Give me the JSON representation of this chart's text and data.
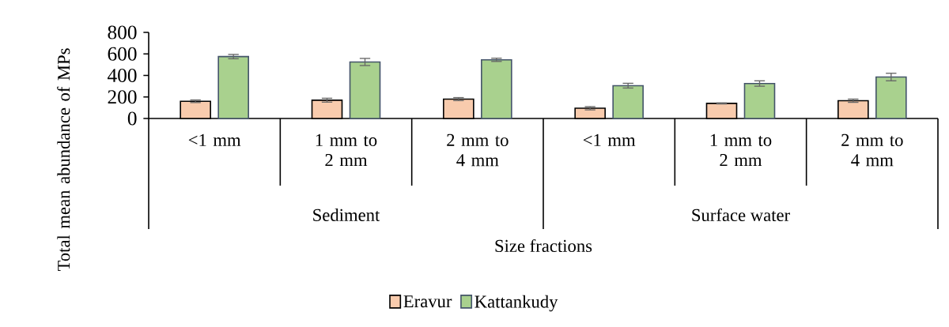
{
  "chart_data": {
    "type": "bar",
    "xlabel": "Size fractions",
    "ylabel": "Total mean abundance of MPs",
    "categories": [
      "<1 mm",
      "1 mm to 2 mm",
      "2 mm to 4 mm",
      "<1 mm",
      "1 mm to 2 mm",
      "2 mm to 4 mm"
    ],
    "annotations": [
      "Sediment",
      "Surface water"
    ],
    "series": [
      {
        "name": "Eravur",
        "color": "#f8cbad",
        "values": [
          160,
          170,
          180,
          95,
          140,
          165
        ],
        "errors": [
          12,
          18,
          14,
          15,
          5,
          15
        ]
      },
      {
        "name": "Kattankudy",
        "color": "#a9d18e",
        "values": [
          575,
          525,
          545,
          305,
          325,
          385
        ],
        "errors": [
          20,
          33,
          15,
          22,
          25,
          35
        ]
      }
    ],
    "ylim": [
      0,
      800
    ],
    "yticks": [
      0,
      200,
      400,
      600,
      800
    ],
    "grid": false,
    "legend": "bottom"
  }
}
